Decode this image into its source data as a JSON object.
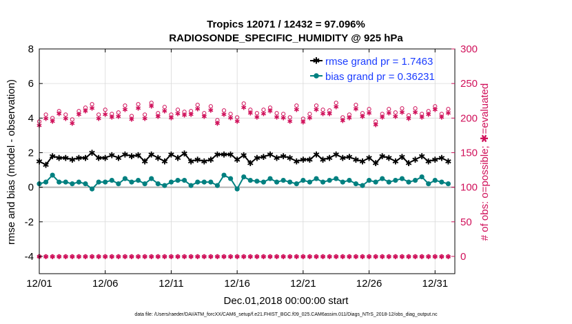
{
  "chart_data": {
    "type": "line",
    "title": "Tropics 12071 / 12432 = 97.096%",
    "subtitle": "RADIOSONDE_SPECIFIC_HUMIDITY @ 925 hPa",
    "xlabel": "Dec.01,2018 00:00:00 start",
    "ylabel": "rmse and bias (model - observation)",
    "ylabel_right": "# of obs: o=possible; ✱=evaluated",
    "xlim": [
      0,
      31.5
    ],
    "ylim": [
      -5,
      8
    ],
    "ylim_right": [
      -25,
      300
    ],
    "xticks": [
      0,
      5,
      10,
      15,
      20,
      25,
      30
    ],
    "xtick_labels": [
      "12/01",
      "12/06",
      "12/11",
      "12/16",
      "12/21",
      "12/26",
      "12/31"
    ],
    "yticks": [
      -4,
      -2,
      0,
      2,
      4,
      6,
      8
    ],
    "yticks_right": [
      0,
      50,
      100,
      150,
      200,
      250,
      300
    ],
    "x": [
      0,
      0.5,
      1,
      1.5,
      2,
      2.5,
      3,
      3.5,
      4,
      4.5,
      5,
      5.5,
      6,
      6.5,
      7,
      7.5,
      8,
      8.5,
      9,
      9.5,
      10,
      10.5,
      11,
      11.5,
      12,
      12.5,
      13,
      13.5,
      14,
      14.5,
      15,
      15.5,
      16,
      16.5,
      17,
      17.5,
      18,
      18.5,
      19,
      19.5,
      20,
      20.5,
      21,
      21.5,
      22,
      22.5,
      23,
      23.5,
      24,
      24.5,
      25,
      25.5,
      26,
      26.5,
      27,
      27.5,
      28,
      28.5,
      29,
      29.5,
      30,
      30.5,
      31
    ],
    "series": [
      {
        "name": "rmse grand pr = 1.7463",
        "color": "#000000",
        "values": [
          1.5,
          1.3,
          1.8,
          1.7,
          1.7,
          1.6,
          1.7,
          1.7,
          2.0,
          1.7,
          1.7,
          1.85,
          1.7,
          1.9,
          1.8,
          1.85,
          1.5,
          1.9,
          1.7,
          1.5,
          1.9,
          1.7,
          1.95,
          1.5,
          1.6,
          1.5,
          1.6,
          1.9,
          1.9,
          1.9,
          1.6,
          1.85,
          1.4,
          1.7,
          1.75,
          1.9,
          1.7,
          1.8,
          1.7,
          1.5,
          1.6,
          1.6,
          1.9,
          1.6,
          1.7,
          1.9,
          1.7,
          1.75,
          1.6,
          1.5,
          1.7,
          1.4,
          1.8,
          1.7,
          1.5,
          1.75,
          1.4,
          1.6,
          1.8,
          1.5,
          1.6,
          1.7,
          1.5
        ]
      },
      {
        "name": "bias grand pr = 0.36231",
        "color": "#008080",
        "values": [
          0.2,
          0.3,
          0.7,
          0.3,
          0.3,
          0.2,
          0.3,
          0.2,
          -0.1,
          0.3,
          0.3,
          0.4,
          0.2,
          0.5,
          0.3,
          0.4,
          0.2,
          0.5,
          0.2,
          0.1,
          0.3,
          0.4,
          0.4,
          0.1,
          0.3,
          0.3,
          0.3,
          0.1,
          0.7,
          0.5,
          -0.1,
          0.6,
          0.4,
          0.35,
          0.3,
          0.5,
          0.3,
          0.4,
          0.3,
          0.2,
          0.4,
          0.3,
          0.5,
          0.3,
          0.4,
          0.5,
          0.3,
          0.4,
          0.2,
          0.1,
          0.4,
          0.3,
          0.5,
          0.3,
          0.4,
          0.5,
          0.3,
          0.4,
          0.6,
          0.2,
          0.4,
          0.3,
          0.2
        ]
      }
    ],
    "obs_possible": [
      195,
      205,
      200,
      210,
      205,
      198,
      210,
      215,
      220,
      205,
      212,
      206,
      208,
      218,
      203,
      220,
      205,
      222,
      207,
      216,
      205,
      212,
      209,
      210,
      219,
      207,
      217,
      197,
      211,
      206,
      201,
      221,
      212,
      207,
      212,
      215,
      207,
      206,
      201,
      218,
      199,
      206,
      218,
      212,
      211,
      222,
      201,
      205,
      219,
      207,
      213,
      195,
      206,
      213,
      208,
      214,
      204,
      214,
      206,
      210,
      217,
      206,
      213
    ],
    "obs_evaluated": [
      190,
      200,
      196,
      207,
      200,
      193,
      206,
      211,
      215,
      200,
      206,
      202,
      203,
      213,
      199,
      215,
      200,
      218,
      203,
      211,
      201,
      207,
      205,
      206,
      214,
      203,
      212,
      193,
      206,
      201,
      196,
      216,
      208,
      202,
      207,
      211,
      202,
      201,
      196,
      213,
      195,
      201,
      213,
      207,
      207,
      217,
      197,
      201,
      214,
      203,
      208,
      191,
      202,
      208,
      203,
      209,
      200,
      209,
      202,
      206,
      213,
      202,
      208
    ],
    "obs_floor": [
      0,
      0,
      0,
      0,
      0,
      0,
      0,
      0,
      0,
      0,
      0,
      0,
      0,
      0,
      0,
      0,
      0,
      0,
      0,
      0,
      0,
      0,
      0,
      0,
      0,
      0,
      0,
      0,
      0,
      0,
      0,
      0,
      0,
      0,
      0,
      0,
      0,
      0,
      0,
      0,
      0,
      0,
      0,
      0,
      0,
      0,
      0,
      0,
      0,
      0,
      0,
      0,
      0,
      0,
      0,
      0,
      0,
      0,
      0,
      0,
      0,
      0,
      0
    ],
    "legend": [
      "rmse grand pr = 1.7463",
      "bias grand pr = 0.36231"
    ],
    "legend_location": "top-right",
    "grid": true,
    "footer": "data file: /Users/raeder/DAI/ATM_forcXX/CAM6_setup/f.e21.FHIST_BGC.f09_025.CAM6assim.011/Diags_NTrS_2018-12/obs_diag_output.nc"
  },
  "colors": {
    "rmse": "#000000",
    "bias": "#008080",
    "obs": "#d0105a",
    "legend_text": "#1a3cff",
    "grid": "#d9d9d9",
    "zero_line": "#b3b3b3"
  }
}
